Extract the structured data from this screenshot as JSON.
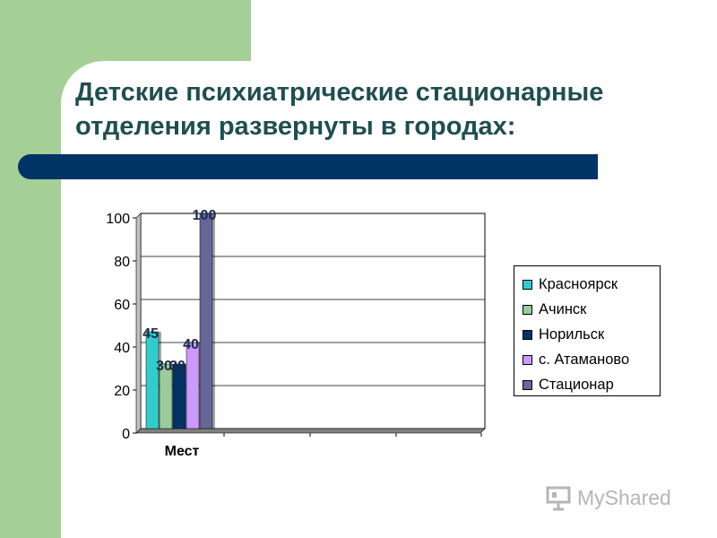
{
  "slide": {
    "title_line1": "Детские психиатрические стационарные",
    "title_line2": "отделения развернуты в городах:"
  },
  "chart_data": {
    "type": "bar",
    "categories": [
      "Мест"
    ],
    "series": [
      {
        "name": "Красноярск",
        "values": [
          45
        ],
        "color": "#33cccc",
        "label": "45"
      },
      {
        "name": "Ачинск",
        "values": [
          30
        ],
        "color": "#99cc99",
        "label": "30"
      },
      {
        "name": "Норильск",
        "values": [
          30
        ],
        "color": "#003366",
        "label": "30"
      },
      {
        "name": "с. Атаманово",
        "values": [
          40
        ],
        "color": "#cc99ff",
        "label": "40"
      },
      {
        "name": "Стационар",
        "values": [
          100
        ],
        "color": "#666699",
        "label": "100"
      }
    ],
    "yticks": [
      "0",
      "20",
      "40",
      "60",
      "80",
      "100"
    ],
    "ylim": [
      0,
      100
    ],
    "grid": true,
    "legend": "right"
  },
  "watermark": {
    "text": "MyShared"
  }
}
